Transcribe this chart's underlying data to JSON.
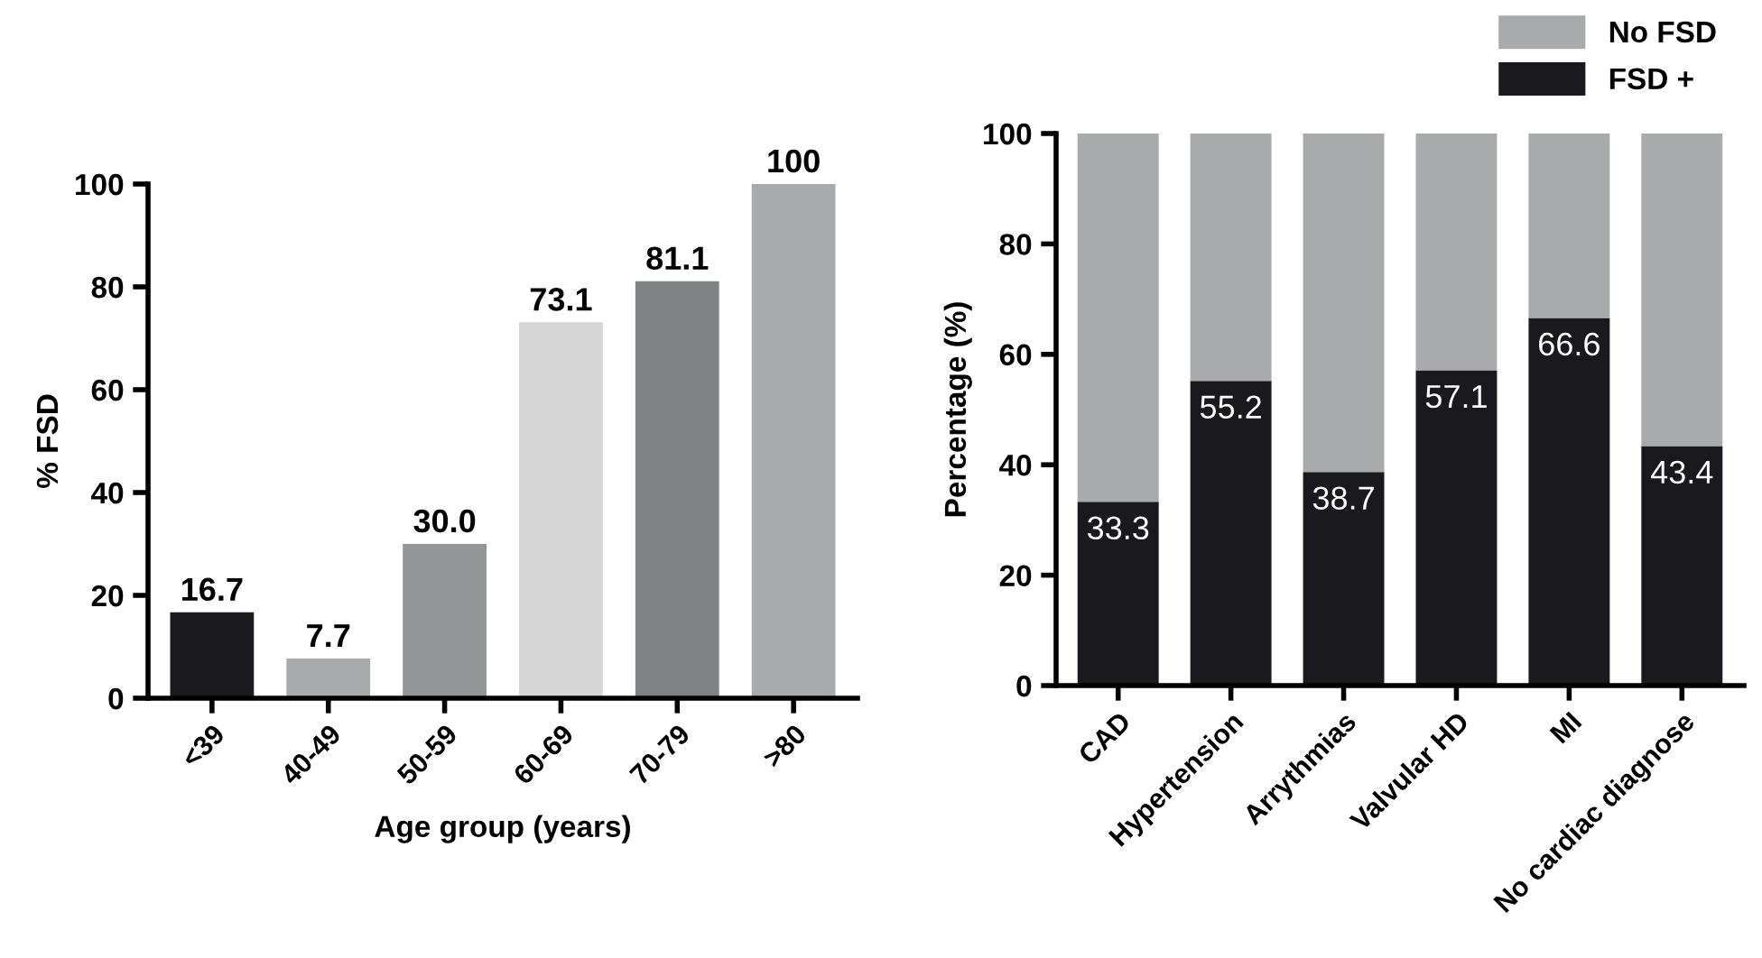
{
  "chart_data": [
    {
      "type": "bar",
      "categories": [
        "<39",
        "40-49",
        "50-59",
        "60-69",
        "70-79",
        ">80"
      ],
      "values": [
        16.7,
        7.7,
        30.0,
        73.1,
        81.1,
        100
      ],
      "colors": [
        "#1a1a1e",
        "#a8aaab",
        "#939596",
        "#d6d6d6",
        "#7e8283",
        "#a8aaab"
      ],
      "value_labels": [
        "16.7",
        "7.7",
        "30.0",
        "73.1",
        "81.1",
        "100"
      ],
      "xlabel": "Age group (years)",
      "ylabel": "% FSD",
      "ylim": [
        0,
        100
      ],
      "yticks": [
        0,
        20,
        40,
        60,
        80,
        100
      ],
      "grid": false,
      "legend": false
    },
    {
      "type": "bar",
      "stacked": true,
      "categories": [
        "CAD",
        "Hypertension",
        "Arrythmias",
        "Valvular HD",
        "MI",
        "No cardiac diagnose"
      ],
      "series": [
        {
          "name": "FSD +",
          "color": "#1a1a1e",
          "values": [
            33.3,
            55.2,
            38.7,
            57.1,
            66.6,
            43.4
          ],
          "value_labels": [
            "33.3",
            "55.2",
            "38.7",
            "57.1",
            "66.6",
            "43.4"
          ]
        },
        {
          "name": "No FSD",
          "color": "#a8aaab",
          "values": [
            66.7,
            44.8,
            61.3,
            42.9,
            33.4,
            56.6
          ]
        }
      ],
      "ylabel": "Percentage (%)",
      "ylim": [
        0,
        100
      ],
      "yticks": [
        0,
        20,
        40,
        60,
        80,
        100
      ],
      "grid": false,
      "legend": "top right"
    }
  ]
}
